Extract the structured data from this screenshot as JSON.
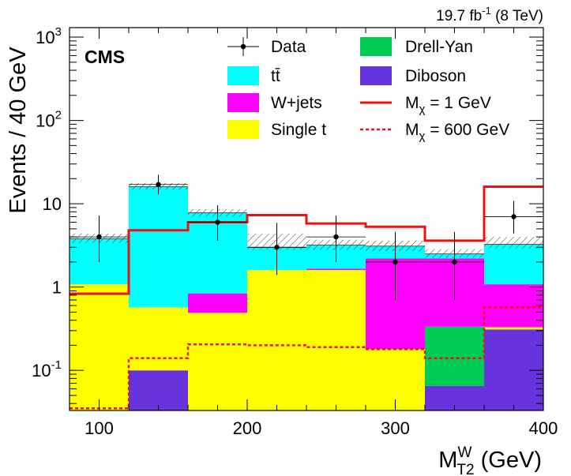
{
  "chart_data": {
    "type": "histogram-stacked",
    "log_y": true,
    "experiment": "CMS",
    "lumi": {
      "value": "19.7 fb",
      "exp": "-1",
      "energy": "(8 TeV)"
    },
    "xlabel": {
      "main": "M",
      "sup": "W",
      "sub": "T2",
      "unit": " (GeV)"
    },
    "ylabel": "Events / 40 GeV",
    "xlim": [
      80,
      400
    ],
    "ylim": [
      0.033,
      1300
    ],
    "x_ticks": [
      100,
      200,
      300,
      400
    ],
    "y_ticks": [
      {
        "v": 0.1,
        "base": "10",
        "exp": "-1"
      },
      {
        "v": 1,
        "base": "1",
        "exp": ""
      },
      {
        "v": 10,
        "base": "10",
        "exp": ""
      },
      {
        "v": 100,
        "base": "10",
        "exp": "2"
      },
      {
        "v": 1000,
        "base": "10",
        "exp": "3"
      }
    ],
    "bin_edges": [
      80,
      120,
      160,
      200,
      240,
      280,
      320,
      360,
      400
    ],
    "stack": [
      {
        "name": "Diboson",
        "color": "#6633dd",
        "values": [
          0,
          0.1,
          0,
          0,
          0,
          0,
          0.065,
          0.31
        ]
      },
      {
        "name": "Drell-Yan",
        "color": "#00cc55",
        "values": [
          0,
          0,
          0,
          0,
          0,
          0,
          0.27,
          0
        ]
      },
      {
        "name": "Single t",
        "color": "#ffff00",
        "values": [
          1.08,
          0.47,
          0.49,
          1.6,
          1.6,
          0.18,
          0,
          0.02
        ]
      },
      {
        "name": "W+jets",
        "color": "#ff00ff",
        "values": [
          0,
          0,
          0.35,
          0,
          0.06,
          2.02,
          1.87,
          0.75
        ]
      },
      {
        "name": "tt̄",
        "color": "#00ffff",
        "values": [
          2.72,
          15.43,
          6.96,
          1.4,
          1.54,
          0.92,
          0.285,
          2.18
        ]
      }
    ],
    "total": [
      3.8,
      16.0,
      7.8,
      3.0,
      3.2,
      3.1,
      2.5,
      3.26
    ],
    "total_unc": [
      [
        3.4,
        4.4
      ],
      [
        14.8,
        17.8
      ],
      [
        7.0,
        8.6
      ],
      [
        2.8,
        4.4
      ],
      [
        2.8,
        3.7
      ],
      [
        2.7,
        3.6
      ],
      [
        2.25,
        2.85
      ],
      [
        2.9,
        4.0
      ]
    ],
    "data": {
      "name": "Data",
      "x": [
        100,
        140,
        180,
        220,
        260,
        300,
        340,
        380
      ],
      "y": [
        4,
        17,
        6,
        3,
        4,
        2,
        2,
        7
      ],
      "yerr_low": [
        2.0,
        4.1,
        2.4,
        1.6,
        2.0,
        1.3,
        1.3,
        2.6
      ],
      "yerr_high": [
        3.2,
        5.2,
        3.6,
        2.9,
        3.2,
        2.6,
        2.6,
        3.8
      ]
    },
    "signals": [
      {
        "name": "M",
        "sub": "χ",
        "label_rest": " = 1 GeV",
        "color": "#ee1111",
        "style": "solid",
        "values": [
          0.83,
          4.8,
          6.0,
          7.3,
          5.8,
          5.3,
          3.6,
          16.0
        ]
      },
      {
        "name": "M",
        "sub": "χ",
        "label_rest": " = 600 GeV",
        "color": "#ee1111",
        "style": "dotted",
        "values": [
          0.035,
          0.14,
          0.205,
          0.2,
          0.19,
          0.18,
          0.14,
          0.57
        ]
      }
    ],
    "legend": {
      "position": "top-right",
      "entries": [
        "Data",
        "Drell-Yan",
        "tt̄",
        "Diboson",
        "W+jets",
        "M_χ = 1 GeV",
        "Single t",
        "M_χ = 600 GeV"
      ]
    }
  }
}
